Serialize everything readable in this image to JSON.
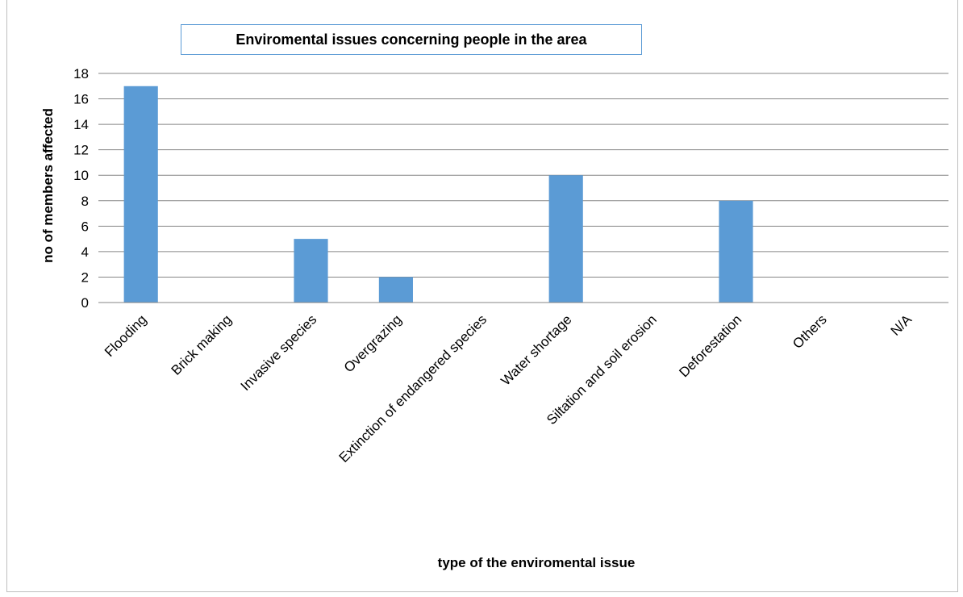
{
  "chart_data": {
    "type": "bar",
    "title": "Enviromental issues concerning people in the area",
    "xlabel": "type of the enviromental issue",
    "ylabel": "no of members affected",
    "categories": [
      "Flooding",
      "Brick making",
      "Invasive species",
      "Overgrazing",
      "Extinction of endangered species",
      "Water shortage",
      "Siltation and soil erosion",
      "Deforestation",
      "Others",
      "N/A"
    ],
    "values": [
      17,
      0,
      5,
      2,
      0,
      10,
      0,
      8,
      0,
      0
    ],
    "ylim": [
      0,
      18
    ],
    "yticks": [
      "0",
      "2",
      "4",
      "6",
      "8",
      "10",
      "12",
      "14",
      "16",
      "18"
    ],
    "grid": true,
    "legend": "none",
    "bar_color": "#5b9bd5",
    "grid_color": "#868686"
  }
}
